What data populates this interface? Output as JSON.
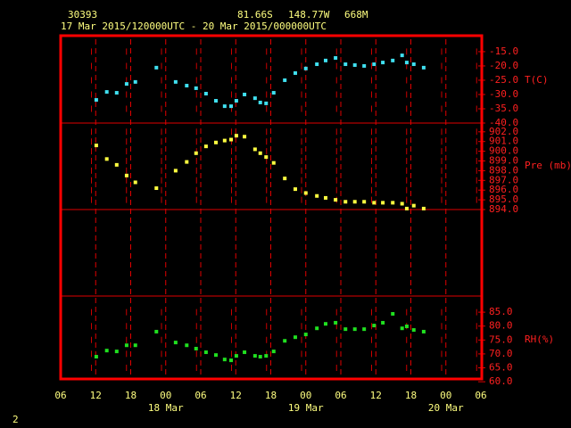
{
  "header": {
    "station": "30393",
    "lat": "81.66S",
    "lon": "148.77W",
    "elev": "668M",
    "period": "17 Mar 2015/120000UTC - 20 Mar 2015/000000UTC"
  },
  "page_number": "2",
  "chart_data": [
    {
      "type": "scatter",
      "label": "T(C)",
      "color": "#40e0f0",
      "xlim": [
        0,
        72
      ],
      "ylim": [
        -40,
        -9.4
      ],
      "yticks": [
        {
          "value": -15,
          "label": "-15.0"
        },
        {
          "value": -20,
          "label": "-20.0"
        },
        {
          "value": -25,
          "label": "-25.0"
        },
        {
          "value": -30,
          "label": "-30.0"
        },
        {
          "value": -35,
          "label": "-35.0"
        },
        {
          "value": -40,
          "label": "-40.0"
        }
      ],
      "x": [
        6.1,
        7.9,
        9.6,
        11.3,
        12.8,
        16.4,
        19.7,
        21.6,
        23.2,
        24.9,
        26.6,
        28.1,
        29.2,
        30.1,
        31.5,
        33.3,
        34.2,
        35.2,
        36.5,
        38.4,
        40.2,
        42.0,
        43.9,
        45.4,
        47.1,
        48.8,
        50.4,
        52.0,
        53.7,
        55.2,
        56.9,
        58.5,
        59.3,
        60.5,
        62.2
      ],
      "values": [
        -31.9,
        -29.1,
        -29.4,
        -26.3,
        -25.6,
        -20.6,
        -25.6,
        -26.9,
        -27.8,
        -29.7,
        -32.2,
        -34.1,
        -34.1,
        -32.2,
        -30.0,
        -31.3,
        -32.8,
        -33.1,
        -29.4,
        -25.0,
        -22.5,
        -20.9,
        -19.4,
        -18.1,
        -17.2,
        -19.4,
        -19.7,
        -20.0,
        -19.4,
        -18.8,
        -18.1,
        -16.3,
        -18.8,
        -19.4,
        -20.6
      ]
    },
    {
      "type": "scatter",
      "label": "Pre (mb)",
      "color": "#ffff40",
      "xlim": [
        0,
        72
      ],
      "ylim": [
        894,
        902.9
      ],
      "yticks": [
        {
          "value": 902,
          "label": "902.0"
        },
        {
          "value": 901,
          "label": "901.0"
        },
        {
          "value": 900,
          "label": "900.0"
        },
        {
          "value": 899,
          "label": "899.0"
        },
        {
          "value": 898,
          "label": "898.0"
        },
        {
          "value": 897,
          "label": "897.0"
        },
        {
          "value": 896,
          "label": "896.0"
        },
        {
          "value": 895,
          "label": "895.0"
        },
        {
          "value": 894,
          "label": "894.0"
        }
      ],
      "x": [
        6.1,
        7.9,
        9.6,
        11.3,
        12.8,
        16.4,
        19.7,
        21.6,
        23.2,
        24.9,
        26.6,
        28.1,
        29.2,
        30.1,
        31.5,
        33.3,
        34.2,
        35.2,
        36.5,
        38.4,
        40.2,
        42.0,
        43.9,
        45.4,
        47.1,
        48.8,
        50.4,
        52.0,
        53.7,
        55.2,
        56.9,
        58.5,
        59.3,
        60.5,
        62.2
      ],
      "values": [
        900.6,
        899.2,
        898.6,
        897.5,
        896.8,
        896.2,
        898.0,
        898.9,
        899.8,
        900.5,
        900.9,
        901.1,
        901.2,
        901.6,
        901.5,
        900.2,
        899.8,
        899.4,
        898.8,
        897.2,
        896.1,
        895.7,
        895.4,
        895.2,
        895.0,
        894.8,
        894.8,
        894.8,
        894.7,
        894.7,
        894.7,
        894.6,
        894.1,
        894.4,
        894.1
      ]
    },
    {
      "type": "scatter",
      "label": "RH(%)",
      "color": "#20e020",
      "xlim": [
        0,
        72
      ],
      "ylim": [
        61,
        90.8
      ],
      "yticks": [
        {
          "value": 85,
          "label": "85.0"
        },
        {
          "value": 80,
          "label": "80.0"
        },
        {
          "value": 75,
          "label": "75.0"
        },
        {
          "value": 70,
          "label": "70.0"
        },
        {
          "value": 65,
          "label": "65.0"
        },
        {
          "value": 60,
          "label": "60.0"
        }
      ],
      "xticks": [
        {
          "value": 0,
          "label": "06"
        },
        {
          "value": 6,
          "label": "12"
        },
        {
          "value": 12,
          "label": "18"
        },
        {
          "value": 18,
          "label": "00"
        },
        {
          "value": 24,
          "label": "06"
        },
        {
          "value": 30,
          "label": "12"
        },
        {
          "value": 36,
          "label": "18"
        },
        {
          "value": 42,
          "label": "00"
        },
        {
          "value": 48,
          "label": "06"
        },
        {
          "value": 54,
          "label": "12"
        },
        {
          "value": 60,
          "label": "18"
        },
        {
          "value": 66,
          "label": "00"
        },
        {
          "value": 72,
          "label": "06"
        }
      ],
      "date_labels": [
        {
          "value": 18,
          "label": "18 Mar"
        },
        {
          "value": 42,
          "label": "19 Mar"
        },
        {
          "value": 66,
          "label": "20 Mar"
        }
      ],
      "x": [
        6.1,
        7.9,
        9.6,
        11.3,
        12.8,
        16.4,
        19.7,
        21.6,
        23.2,
        24.9,
        26.6,
        28.1,
        29.2,
        30.1,
        31.5,
        33.3,
        34.2,
        35.2,
        36.5,
        38.4,
        40.2,
        42.0,
        43.9,
        45.4,
        47.1,
        48.8,
        50.4,
        52.0,
        53.7,
        55.2,
        56.9,
        58.5,
        59.3,
        60.5,
        62.2
      ],
      "values": [
        69.0,
        71.2,
        70.9,
        73.1,
        73.1,
        78.0,
        74.1,
        73.1,
        71.9,
        70.6,
        69.6,
        68.0,
        67.7,
        69.3,
        70.6,
        69.3,
        69.0,
        69.3,
        70.9,
        74.7,
        76.0,
        77.0,
        79.2,
        80.8,
        81.2,
        78.9,
        78.9,
        78.9,
        80.2,
        81.2,
        84.4,
        79.2,
        79.9,
        78.6,
        78.0
      ]
    }
  ]
}
